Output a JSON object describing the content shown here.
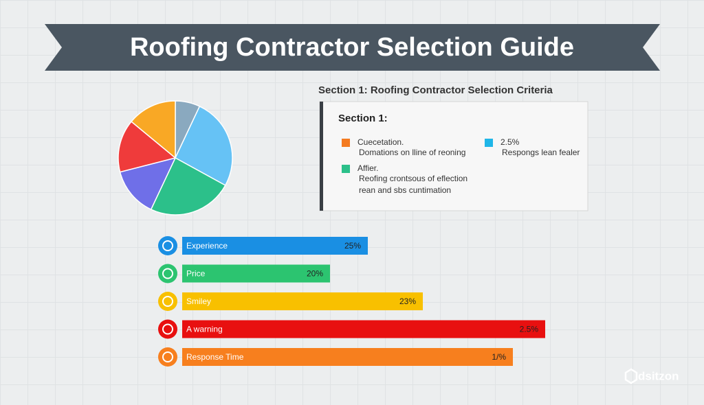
{
  "title": "Roofing Contractor Selection Guide",
  "chart_data": {
    "type": "pie",
    "categories": [
      null,
      null,
      null,
      null,
      null,
      null
    ],
    "values": [
      7,
      26,
      24,
      14,
      15,
      14
    ],
    "colors": [
      "#8aa9bf",
      "#66c2f5",
      "#2cc08a",
      "#6f6fe8",
      "#ef3b3b",
      "#f9a825"
    ]
  },
  "criteria": {
    "heading": "Section 1: Roofing Contractor Selection Criteria",
    "box_title": "Section 1:",
    "entries": [
      {
        "color": "#f47b20",
        "lines": [
          "Cuecetation.",
          "Domations on lline of reoning"
        ]
      },
      {
        "color": "#1fb6e8",
        "lines": [
          "2.5%",
          "Respongs lean fealer"
        ]
      },
      {
        "color": "#2cc08a",
        "lines": [
          "Affier.",
          "Reofing crontsous of eflection",
          "rean and sbs cuntimation"
        ]
      }
    ]
  },
  "items": [
    {
      "label": "Experience",
      "value_label": "25%",
      "color": "#1a8fe3"
    },
    {
      "label": "Price",
      "value_label": "20%",
      "color": "#2cc470"
    },
    {
      "label": "Smiley",
      "value_label": "23%",
      "color": "#f8c000"
    },
    {
      "label": "A warning",
      "value_label": "2.5%",
      "color": "#e81010"
    },
    {
      "label": "Response Time",
      "value_label": "1/%",
      "color": "#f77f1e"
    }
  ],
  "watermark": "dsitzon"
}
